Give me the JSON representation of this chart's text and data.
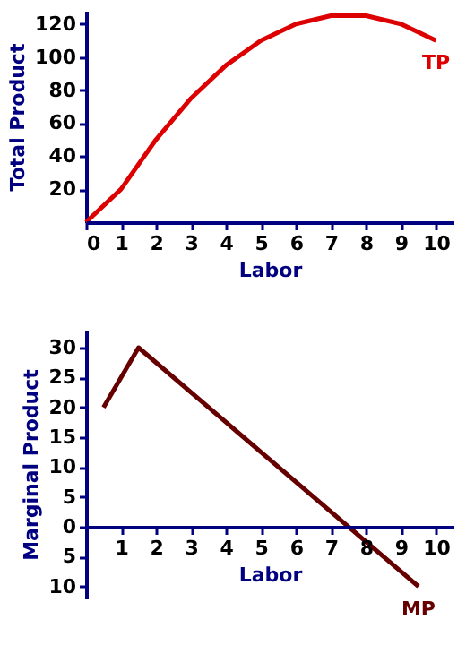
{
  "chart_data": [
    {
      "type": "line",
      "xlabel": "Labor",
      "ylabel": "Total Product",
      "x": [
        0,
        1,
        2,
        3,
        4,
        5,
        6,
        7,
        8,
        9,
        10
      ],
      "xlim": [
        0,
        10.5
      ],
      "xticks": [
        0,
        1,
        2,
        3,
        4,
        5,
        6,
        7,
        8,
        9,
        10
      ],
      "ylim": [
        0,
        128
      ],
      "yticks": [
        20,
        40,
        60,
        80,
        100,
        120
      ],
      "grid": false,
      "series": [
        {
          "name": "TP",
          "color": "#dd0000",
          "values": [
            0,
            20,
            50,
            75,
            95,
            110,
            120,
            125,
            125,
            120,
            110
          ]
        }
      ]
    },
    {
      "type": "line",
      "xlabel": "Labor",
      "ylabel": "Marginal Product",
      "x": [
        0.5,
        1.5,
        9.5
      ],
      "xlim": [
        0,
        10.5
      ],
      "xticks": [
        1,
        2,
        3,
        4,
        5,
        6,
        7,
        8,
        9,
        10
      ],
      "ylim": [
        -12,
        33
      ],
      "yticks": [
        30,
        25,
        20,
        15,
        10,
        5,
        0,
        {
          "value": -5,
          "label": "5"
        },
        {
          "value": -10,
          "label": "10"
        }
      ],
      "grid": false,
      "series": [
        {
          "name": "MP",
          "color": "#660000",
          "values": [
            20,
            30,
            -10
          ]
        }
      ]
    }
  ]
}
